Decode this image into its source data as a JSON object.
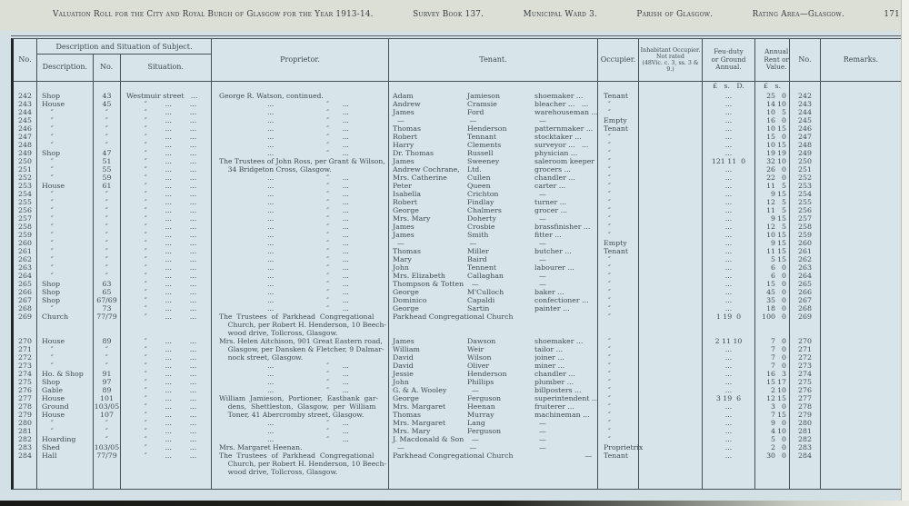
{
  "title": {
    "main": "Valuation Roll for the City and Royal Burgh of Glasgow for the Year 1913-14.",
    "survey": "Survey Book 137.",
    "ward": "Municipal Ward 3.",
    "parish": "Parish of Glasgow.",
    "rating": "Rating Area—Glasgow.",
    "page": "171"
  },
  "header": {
    "no": "No.",
    "group": "Description and Situation of Subject.",
    "description": "Description.",
    "no2": "No.",
    "situation": "Situation.",
    "proprietor": "Proprietor.",
    "tenant": "Tenant.",
    "occupier": "Occupier.",
    "inhabitant": "Inhabitant Occupier.\nNot rated\n(48Vic. c. 3, ss. 3 & 9.)",
    "feu": "Feu-duty\nor Ground\nAnnual.",
    "rent": "Annual\nRent or\nValue.",
    "no3": "No.",
    "remarks": "Remarks.",
    "feu_units": "£   s.   D.",
    "rent_units": "£   s."
  },
  "rows": [
    {
      "no": "242",
      "desc": "Shop",
      "stno": "43",
      "sit": "Westmuir street   ...      ...",
      "prop": "George R. Watson, continued.",
      "t1": "Adam",
      "t2": "Jamieson",
      "t3": "shoemaker ...",
      "occ": "Tenant",
      "feu": "...",
      "rl": "25",
      "rr": "0",
      "no2": "242"
    },
    {
      "no": "243",
      "desc": "House",
      "stno": "45",
      "sit": "        ″        ...        ...",
      "prop": "                      ...                        ″      ...",
      "t1": "Andrew",
      "t2": "Cramsie",
      "t3": "bleacher ...   ...",
      "occ": "  ″",
      "feu": "...",
      "rl": "14",
      "rr": "10",
      "no2": "243"
    },
    {
      "no": "244",
      "desc": "    ″",
      "stno": "″",
      "sit": "        ″        ...        ...",
      "prop": "                      ...                        ″      ...",
      "t1": "James",
      "t2": "Ford",
      "t3": "warehouseman ...",
      "occ": "  ″",
      "feu": "...",
      "rl": "10",
      "rr": "5",
      "no2": "244"
    },
    {
      "no": "245",
      "desc": "    ″",
      "stno": "″",
      "sit": "        ″        ...        ...",
      "prop": "                      ...                        ″      ...",
      "t1": "  —",
      "t2": " —",
      "t3": "  —",
      "occ": "Empty",
      "feu": "...",
      "rl": "16",
      "rr": "0",
      "no2": "245"
    },
    {
      "no": "246",
      "desc": "    ″",
      "stno": "″",
      "sit": "        ″        ...        ...",
      "prop": "                      ...                        ″      ...",
      "t1": "Thomas",
      "t2": "Henderson",
      "t3": "patternmaker ...",
      "occ": "Tenant",
      "feu": "...",
      "rl": "10",
      "rr": "15",
      "no2": "246"
    },
    {
      "no": "247",
      "desc": "    ″",
      "stno": "″",
      "sit": "        ″        ...        ...",
      "prop": "                      ...                        ″      ...",
      "t1": "Robert",
      "t2": "Tennant",
      "t3": "stocktaker ...",
      "occ": "  ″",
      "feu": "...",
      "rl": "15",
      "rr": "0",
      "no2": "247"
    },
    {
      "no": "248",
      "desc": "    ″",
      "stno": "″",
      "sit": "        ″        ...        ...",
      "prop": "                      ...                        ″      ...",
      "t1": "Harry",
      "t2": "Clements",
      "t3": "surveyor ...   ...",
      "occ": "  ″",
      "feu": "...",
      "rl": "10",
      "rr": "15",
      "no2": "248"
    },
    {
      "no": "249",
      "desc": "Shop",
      "stno": "47",
      "sit": "        ″        ...        ...",
      "prop": "                      ...                        ″      ...",
      "t1": "Dr. Thomas",
      "t2": "Russell",
      "t3": "physician ...",
      "occ": "  ″",
      "feu": "...",
      "rl": "19",
      "rr": "19",
      "no2": "249"
    },
    {
      "no": "250",
      "desc": "    ″",
      "stno": "51",
      "sit": "        ″        ...        ...",
      "prop": "The Trustees of John Ross, per Grant & Wilson,",
      "t1": "James",
      "t2": "Sweeney",
      "t3": "saleroom keeper ...",
      "occ": "  ″",
      "feu": "121 11  0",
      "rl": "32",
      "rr": "10",
      "no2": "250"
    },
    {
      "no": "251",
      "desc": "    ″",
      "stno": "55",
      "sit": "        ″        ...        ...",
      "prop": "    34 Bridgeton Cross, Glasgow.",
      "t1": "Andrew Cochrane,",
      "t2": "Ltd.",
      "t3": "grocers ...",
      "occ": "  ″",
      "feu": "...",
      "rl": "26",
      "rr": "0",
      "no2": "251"
    },
    {
      "no": "252",
      "desc": "    ″",
      "stno": "59",
      "sit": "        ″        ...        ...",
      "prop": "                      ...                        ″      ...",
      "t1": "Mrs. Catherine",
      "t2": "Cullen",
      "t3": "chandler ...",
      "occ": "  ″",
      "feu": "...",
      "rl": "22",
      "rr": "0",
      "no2": "252"
    },
    {
      "no": "253",
      "desc": "House",
      "stno": "61",
      "sit": "        ″        ...        ...",
      "prop": "                      ...                        ″      ...",
      "t1": "Peter",
      "t2": "Queen",
      "t3": "carter ...",
      "occ": "  ″",
      "feu": "...",
      "rl": "11",
      "rr": "5",
      "no2": "253"
    },
    {
      "no": "254",
      "desc": "    ″",
      "stno": "″",
      "sit": "        ″        ...        ...",
      "prop": "                      ...                        ″      ...",
      "t1": "Isabella",
      "t2": "Crichton",
      "t3": "  —",
      "occ": "  ″",
      "feu": "...",
      "rl": "9",
      "rr": "15",
      "no2": "254"
    },
    {
      "no": "255",
      "desc": "    ″",
      "stno": "″",
      "sit": "        ″        ...        ...",
      "prop": "                      ...                        ″      ...",
      "t1": "Robert",
      "t2": "Findlay",
      "t3": "turner ...",
      "occ": "  ″",
      "feu": "...",
      "rl": "12",
      "rr": "5",
      "no2": "255"
    },
    {
      "no": "256",
      "desc": "    ″",
      "stno": "″",
      "sit": "        ″        ...        ...",
      "prop": "                      ...                        ″      ...",
      "t1": "George",
      "t2": "Chalmers",
      "t3": "grocer ...",
      "occ": "  ″",
      "feu": "...",
      "rl": "11",
      "rr": "5",
      "no2": "256"
    },
    {
      "no": "257",
      "desc": "    ″",
      "stno": "″",
      "sit": "        ″        ...        ...",
      "prop": "                      ...                        ″      ...",
      "t1": "Mrs. Mary",
      "t2": "Doherty",
      "t3": "  —",
      "occ": "  ″",
      "feu": "...",
      "rl": "9",
      "rr": "15",
      "no2": "257"
    },
    {
      "no": "258",
      "desc": "    ″",
      "stno": "″",
      "sit": "        ″        ...        ...",
      "prop": "                      ...                        ″      ...",
      "t1": "James",
      "t2": "Crosbie",
      "t3": "brassfinisher ...",
      "occ": "  ″",
      "feu": "...",
      "rl": "12",
      "rr": "5",
      "no2": "258"
    },
    {
      "no": "259",
      "desc": "    ″",
      "stno": "″",
      "sit": "        ″        ...        ...",
      "prop": "                      ...                        ″      ...",
      "t1": "James",
      "t2": "Smith",
      "t3": "fitter ...",
      "occ": "  ″",
      "feu": "...",
      "rl": "10",
      "rr": "15",
      "no2": "259"
    },
    {
      "no": "260",
      "desc": "    ″",
      "stno": "″",
      "sit": "        ″        ...        ...",
      "prop": "                      ...                        ″      ...",
      "t1": "  —",
      "t2": " —",
      "t3": "  —",
      "occ": "Empty",
      "feu": "...",
      "rl": "9",
      "rr": "15",
      "no2": "260"
    },
    {
      "no": "261",
      "desc": "    ″",
      "stno": "″",
      "sit": "        ″        ...        ...",
      "prop": "                      ...                        ″      ...",
      "t1": "Thomas",
      "t2": "Miller",
      "t3": "butcher ...",
      "occ": "Tenant",
      "feu": "...",
      "rl": "11",
      "rr": "15",
      "no2": "261"
    },
    {
      "no": "262",
      "desc": "    ″",
      "stno": "″",
      "sit": "        ″        ...        ...",
      "prop": "                      ...                        ″      ...",
      "t1": "Mary",
      "t2": "Baird",
      "t3": "  —",
      "occ": "  ″",
      "feu": "...",
      "rl": "5",
      "rr": "15",
      "no2": "262"
    },
    {
      "no": "263",
      "desc": "    ″",
      "stno": "″",
      "sit": "        ″        ...        ...",
      "prop": "                      ...                        ″      ...",
      "t1": "John",
      "t2": "Tennent",
      "t3": "labourer ...",
      "occ": "  ″",
      "feu": "...",
      "rl": "6",
      "rr": "0",
      "no2": "263"
    },
    {
      "no": "264",
      "desc": "    ″",
      "stno": "″",
      "sit": "        ″        ...        ...",
      "prop": "                      ...                        ″      ...",
      "t1": "Mrs. Elizabeth",
      "t2": "Callaghan",
      "t3": "  —",
      "occ": "  ″",
      "feu": "...",
      "rl": "6",
      "rr": "0",
      "no2": "264"
    },
    {
      "no": "265",
      "desc": "Shop",
      "stno": "63",
      "sit": "        ″        ...        ...",
      "prop": "                      ...                        ″      ...",
      "t1": "Thompson & Totten",
      "t2": "  —",
      "t3": "  —",
      "occ": "  ″",
      "feu": "...",
      "rl": "15",
      "rr": "0",
      "no2": "265"
    },
    {
      "no": "266",
      "desc": "Shop",
      "stno": "65",
      "sit": "        ″        ...        ...",
      "prop": "                      ...                        ″      ...",
      "t1": "George",
      "t2": "M'Culloch",
      "t3": "baker ...",
      "occ": "  ″",
      "feu": "...",
      "rl": "45",
      "rr": "0",
      "no2": "266"
    },
    {
      "no": "267",
      "desc": "Shop",
      "stno": "67/69",
      "sit": "        ″        ...        ...",
      "prop": "                      ...                        ″      ...",
      "t1": "Dominico",
      "t2": "Capaldi",
      "t3": "confectioner ...",
      "occ": "  ″",
      "feu": "...",
      "rl": "35",
      "rr": "0",
      "no2": "267"
    },
    {
      "no": "268",
      "desc": "    ″",
      "stno": "73",
      "sit": "        ″        ...        ...",
      "prop": "                      ...                        ″      ...",
      "t1": "George",
      "t2": "Sartin",
      "t3": "painter ...",
      "occ": "  ″",
      "feu": "...",
      "rl": "18",
      "rr": "0",
      "no2": "268"
    },
    {
      "no": "269",
      "desc": "Church",
      "stno": "77/79",
      "sit": "        ″        ...        ...",
      "prop": "The  Trustees  of  Parkhead  Congregational\n    Church, per Robert H. Henderson, 10 Beech-\n    wood drive, Tollcross, Glasgow.",
      "t1": "Parkhead Congregational Church",
      "t2": "",
      "t3": "",
      "occ": "  ″",
      "feu": "1 19  0",
      "rl": "100",
      "rr": "0",
      "no2": "269"
    },
    {
      "no": "270",
      "desc": "House",
      "stno": "89",
      "sit": "        ″        ...        ...",
      "prop": "Mrs. Helen Aitchison, 901 Great Eastern road,",
      "t1": "James",
      "t2": "Dawson",
      "t3": "shoemaker ...",
      "occ": "  ″",
      "feu": "2 11 10",
      "rl": "7",
      "rr": "0",
      "no2": "270"
    },
    {
      "no": "271",
      "desc": "    ″",
      "stno": "″",
      "sit": "        ″        ...        ...",
      "prop": "    Glasgow, per Dansken & Fletcher, 9 Dalmar-",
      "t1": "William",
      "t2": "Weir",
      "t3": "tailor ...",
      "occ": "  ″",
      "feu": "...",
      "rl": "7",
      "rr": "0",
      "no2": "271"
    },
    {
      "no": "272",
      "desc": "    ″",
      "stno": "″",
      "sit": "        ″        ...        ...",
      "prop": "    nock street, Glasgow.",
      "t1": "David",
      "t2": "Wilson",
      "t3": "joiner ...",
      "occ": "  ″",
      "feu": "...",
      "rl": "7",
      "rr": "0",
      "no2": "272"
    },
    {
      "no": "273",
      "desc": "    ″",
      "stno": "″",
      "sit": "        ″        ...        ...",
      "prop": "                      ...                        ″      ...",
      "t1": "David",
      "t2": "Oliver",
      "t3": "miner ...",
      "occ": "  ″",
      "feu": "...",
      "rl": "7",
      "rr": "0",
      "no2": "273"
    },
    {
      "no": "274",
      "desc": "Ho. & Shop",
      "stno": "91",
      "sit": "        ″        ...        ...",
      "prop": "                      ...                        ″      ...",
      "t1": "Jessie",
      "t2": "Henderson",
      "t3": "chandler ...",
      "occ": "  ″",
      "feu": "...",
      "rl": "16",
      "rr": "3",
      "no2": "274"
    },
    {
      "no": "275",
      "desc": "Shop",
      "stno": "97",
      "sit": "        ″        ...        ...",
      "prop": "                      ...                        ″      ...",
      "t1": "John",
      "t2": "Phillips",
      "t3": "plumber ...",
      "occ": "  ″",
      "feu": "...",
      "rl": "15",
      "rr": "17",
      "no2": "275"
    },
    {
      "no": "276",
      "desc": "Gable",
      "stno": "89",
      "sit": "        ″        ...        ...",
      "prop": "                      ...                        ″      ...",
      "t1": "G. & A. Wooley",
      "t2": "  —",
      "t3": "billposters ...",
      "occ": "  ″",
      "feu": "...",
      "rl": "2",
      "rr": "10",
      "no2": "276"
    },
    {
      "no": "277",
      "desc": "House",
      "stno": "101",
      "sit": "        ″        ...        ...",
      "prop": "William  Jamieson,  Portioner,  Eastbank  gar-",
      "t1": "George",
      "t2": "Ferguson",
      "t3": "superintendent ...",
      "occ": "  ″",
      "feu": "3 19  6",
      "rl": "12",
      "rr": "15",
      "no2": "277"
    },
    {
      "no": "278",
      "desc": "Ground",
      "stno": "103/05",
      "sit": "        ″        ...        ...",
      "prop": "    dens,  Shettleston,  Glasgow,  per  William",
      "t1": "Mrs. Margaret",
      "t2": "Heenan",
      "t3": "fruiterer ...",
      "occ": "  ″",
      "feu": "...",
      "rl": "3",
      "rr": "0",
      "no2": "278"
    },
    {
      "no": "279",
      "desc": "House",
      "stno": "107",
      "sit": "        ″        ...        ...",
      "prop": "    Toner, 41 Abercromby street, Glasgow.",
      "t1": "Thomas",
      "t2": "Murray",
      "t3": "machineman ...",
      "occ": "  ″",
      "feu": "...",
      "rl": "7",
      "rr": "15",
      "no2": "279"
    },
    {
      "no": "280",
      "desc": "    ″",
      "stno": "″",
      "sit": "        ″        ...        ...",
      "prop": "                      ...                        ″      ...",
      "t1": "Mrs. Margaret",
      "t2": "Lang",
      "t3": "  —",
      "occ": "  ″",
      "feu": "...",
      "rl": "9",
      "rr": "0",
      "no2": "280"
    },
    {
      "no": "281",
      "desc": "    ″",
      "stno": "″",
      "sit": "        ″        ...        ...",
      "prop": "                      ...                        ″      ...",
      "t1": "Mrs. Mary",
      "t2": "Ferguson",
      "t3": "  —",
      "occ": "  ″",
      "feu": "...",
      "rl": "4",
      "rr": "10",
      "no2": "281"
    },
    {
      "no": "282",
      "desc": "Hoarding",
      "stno": "″",
      "sit": "        ″        ...        ...",
      "prop": "                      ...                        ″      ...",
      "t1": "J. Macdonald & Son",
      "t2": "  —",
      "t3": "  —",
      "occ": "  ″",
      "feu": "...",
      "rl": "5",
      "rr": "0",
      "no2": "282"
    },
    {
      "no": "283",
      "desc": "Shed",
      "stno": "103/05",
      "sit": "        ″        ...        ...",
      "prop": "Mrs. Margaret Heenan.",
      "t1": "  —",
      "t2": " —",
      "t3": "  —",
      "occ": "Proprietrix",
      "feu": "...",
      "rl": "2",
      "rr": "0",
      "no2": "283"
    },
    {
      "no": "284",
      "desc": "Hall",
      "stno": "77/79",
      "sit": "        ″        ...        ...",
      "prop": "The  Trustees  of  Parkhead  Congregational\n    Church, per Robert H. Henderson, 10 Beech-\n    wood drive, Tollcross, Glasgow.",
      "t1": "Parkhead Congregational Church",
      "t2": "",
      "t3": "  —",
      "occ": "Tenant",
      "feu": "...",
      "rl": "30",
      "rr": "0",
      "no2": "284"
    }
  ]
}
